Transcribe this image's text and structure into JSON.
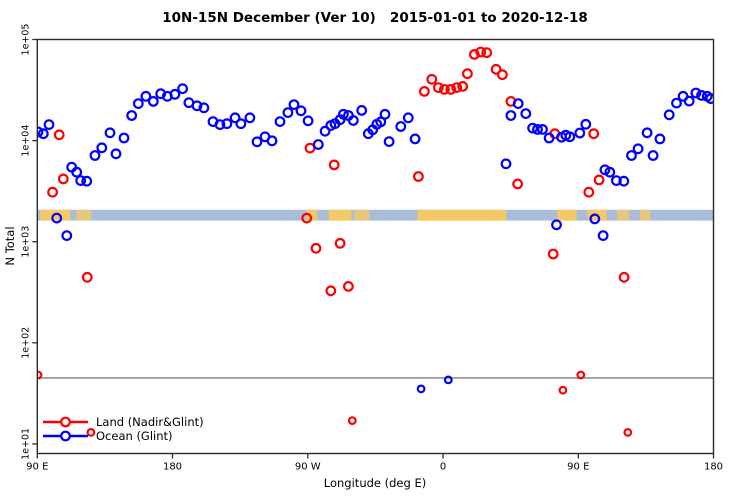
{
  "window": {
    "background": "#ffffff"
  },
  "chart_data": {
    "type": "scatter",
    "title": "10N-15N December (Ver 10)   2015-01-01 to 2020-12-18",
    "xlabel": "Longitude (deg E)",
    "ylabel": "N Total",
    "x_axis": {
      "range_axis_deg": [
        90,
        540
      ],
      "wrap_note": "axis runs 90E to 180 to 90W to 0 to 90E to 180",
      "ticks": [
        {
          "deg": 90,
          "label": "90 E"
        },
        {
          "deg": 180,
          "label": "180"
        },
        {
          "deg": 270,
          "label": "90 W"
        },
        {
          "deg": 360,
          "label": "0"
        },
        {
          "deg": 450,
          "label": "90 E"
        },
        {
          "deg": 540,
          "label": "180"
        }
      ]
    },
    "y_axis": {
      "scale": "log10",
      "range": [
        8,
        110000
      ],
      "ticks": [
        {
          "value": 100000,
          "label": "1e+05"
        },
        {
          "value": 10000,
          "label": "1e+04"
        },
        {
          "value": 1000,
          "label": "1e+03"
        },
        {
          "value": 100,
          "label": "1e+02"
        },
        {
          "value": 10,
          "label": "1e+01"
        }
      ]
    },
    "reference_line": {
      "value": 45,
      "color": "#909090"
    },
    "coast_band": {
      "description": "10N-15N latitude coastline strip",
      "value_range": [
        1620,
        2070
      ],
      "ocean_color": "#a9bdda",
      "land_color": "#f5c966",
      "land_segments_deg": [
        [
          92,
          112,
          "solid"
        ],
        [
          116,
          126,
          "patchy"
        ],
        [
          269,
          276,
          "solid"
        ],
        [
          284,
          299,
          "solid"
        ],
        [
          301,
          311,
          "patchy"
        ],
        [
          343,
          402,
          "solid"
        ],
        [
          436,
          449,
          "solid"
        ],
        [
          456,
          469,
          "solid"
        ],
        [
          476,
          484,
          "patchy"
        ],
        [
          491,
          498,
          "patchy"
        ]
      ]
    },
    "legend": {
      "position": "bottom-left",
      "entries": [
        {
          "label": "Land (Nadir&Glint)",
          "color": "#ff0000"
        },
        {
          "label": "Ocean (Glint)",
          "color": "#0000ff"
        }
      ]
    },
    "series": [
      {
        "name": "Land (Nadir&Glint)",
        "color": "#ff0000",
        "marker": "open-circle",
        "points": [
          [
            104.6,
            11400
          ],
          [
            107.3,
            4180
          ],
          [
            100.2,
            3090
          ],
          [
            123.3,
            444
          ],
          [
            271.5,
            8430
          ],
          [
            287.6,
            5750
          ],
          [
            269.3,
            1710
          ],
          [
            275.5,
            861
          ],
          [
            291.5,
            964
          ],
          [
            285.3,
            327
          ],
          [
            297,
            361
          ],
          [
            343.6,
            4410
          ],
          [
            347.6,
            30700
          ],
          [
            352.5,
            40400
          ],
          [
            356.9,
            33400
          ],
          [
            360.9,
            32100
          ],
          [
            365.2,
            32100
          ],
          [
            369.1,
            33400
          ],
          [
            373.1,
            34400
          ],
          [
            376.2,
            45900
          ],
          [
            380.9,
            71300
          ],
          [
            385.1,
            75300
          ],
          [
            389.1,
            74100
          ],
          [
            395.3,
            50700
          ],
          [
            399.5,
            44900
          ],
          [
            405.2,
            24400
          ],
          [
            409.6,
            3730
          ],
          [
            434.4,
            11700
          ],
          [
            433.3,
            755
          ],
          [
            439.8,
            34
          ],
          [
            451.7,
            48
          ],
          [
            90.5,
            48
          ],
          [
            457,
            3090
          ],
          [
            460.3,
            11700
          ],
          [
            463.9,
            4090
          ],
          [
            480.5,
            444
          ],
          [
            125.7,
            13
          ],
          [
            299.6,
            17
          ],
          [
            483,
            13
          ]
        ]
      },
      {
        "name": "Ocean (Glint)",
        "color": "#0000ff",
        "marker": "open-circle",
        "points": [
          [
            90.5,
            12200
          ],
          [
            94,
            11700
          ],
          [
            97.8,
            14400
          ],
          [
            112.9,
            5460
          ],
          [
            116.2,
            4870
          ],
          [
            118.9,
            4020
          ],
          [
            122.9,
            3970
          ],
          [
            128.4,
            7120
          ],
          [
            132.9,
            8490
          ],
          [
            138.4,
            11950
          ],
          [
            142.4,
            7400
          ],
          [
            147.7,
            10600
          ],
          [
            152.8,
            17700
          ],
          [
            157.2,
            23200
          ],
          [
            162.3,
            27400
          ],
          [
            167.2,
            24400
          ],
          [
            172.1,
            29100
          ],
          [
            176.5,
            27400
          ],
          [
            181.6,
            28700
          ],
          [
            186.7,
            32600
          ],
          [
            190.9,
            23700
          ],
          [
            196.3,
            22100
          ],
          [
            200.9,
            21100
          ],
          [
            206.9,
            15400
          ],
          [
            211.6,
            14400
          ],
          [
            216.2,
            14700
          ],
          [
            221.6,
            16800
          ],
          [
            225.5,
            14700
          ],
          [
            231.5,
            16800
          ],
          [
            236.2,
            9730
          ],
          [
            241.5,
            10900
          ],
          [
            246.2,
            9950
          ],
          [
            251.5,
            15400
          ],
          [
            256.8,
            18900
          ],
          [
            260.8,
            22700
          ],
          [
            265.5,
            19700
          ],
          [
            270.2,
            15700
          ],
          [
            277,
            9140
          ],
          [
            281.5,
            12400
          ],
          [
            285.3,
            14100
          ],
          [
            288.1,
            14700
          ],
          [
            291.5,
            16100
          ],
          [
            293.7,
            18200
          ],
          [
            297,
            17700
          ],
          [
            300.3,
            15800
          ],
          [
            305.9,
            19900
          ],
          [
            310.3,
            11700
          ],
          [
            313.2,
            12800
          ],
          [
            315.9,
            14500
          ],
          [
            318.6,
            15300
          ],
          [
            321.4,
            18200
          ],
          [
            324.1,
            9780
          ],
          [
            331.9,
            13800
          ],
          [
            336.9,
            16800
          ],
          [
            341.4,
            10400
          ],
          [
            405.2,
            17700
          ],
          [
            410,
            23200
          ],
          [
            415.1,
            18500
          ],
          [
            419.6,
            13300
          ],
          [
            422.9,
            12900
          ],
          [
            426.2,
            12900
          ],
          [
            430.6,
            10600
          ],
          [
            438.9,
            10800
          ],
          [
            441.7,
            11300
          ],
          [
            444.4,
            10900
          ],
          [
            451,
            11900
          ],
          [
            455,
            14500
          ],
          [
            467.7,
            5140
          ],
          [
            471,
            4870
          ],
          [
            475.4,
            4020
          ],
          [
            480.3,
            3970
          ],
          [
            485.4,
            7120
          ],
          [
            489.8,
            8290
          ],
          [
            495.8,
            11950
          ],
          [
            499.8,
            7120
          ],
          [
            504.3,
            10400
          ],
          [
            510.5,
            18000
          ],
          [
            515.4,
            23500
          ],
          [
            519.8,
            27400
          ],
          [
            523.8,
            24600
          ],
          [
            528.3,
            29600
          ],
          [
            532,
            28000
          ],
          [
            535.8,
            27400
          ],
          [
            538.2,
            26000
          ],
          [
            102.9,
            1710
          ],
          [
            109.6,
            1150
          ],
          [
            401.9,
            5890
          ],
          [
            435.5,
            1470
          ],
          [
            461,
            1680
          ],
          [
            466.5,
            1150
          ],
          [
            345.4,
            35
          ],
          [
            363.5,
            43
          ]
        ]
      }
    ]
  }
}
